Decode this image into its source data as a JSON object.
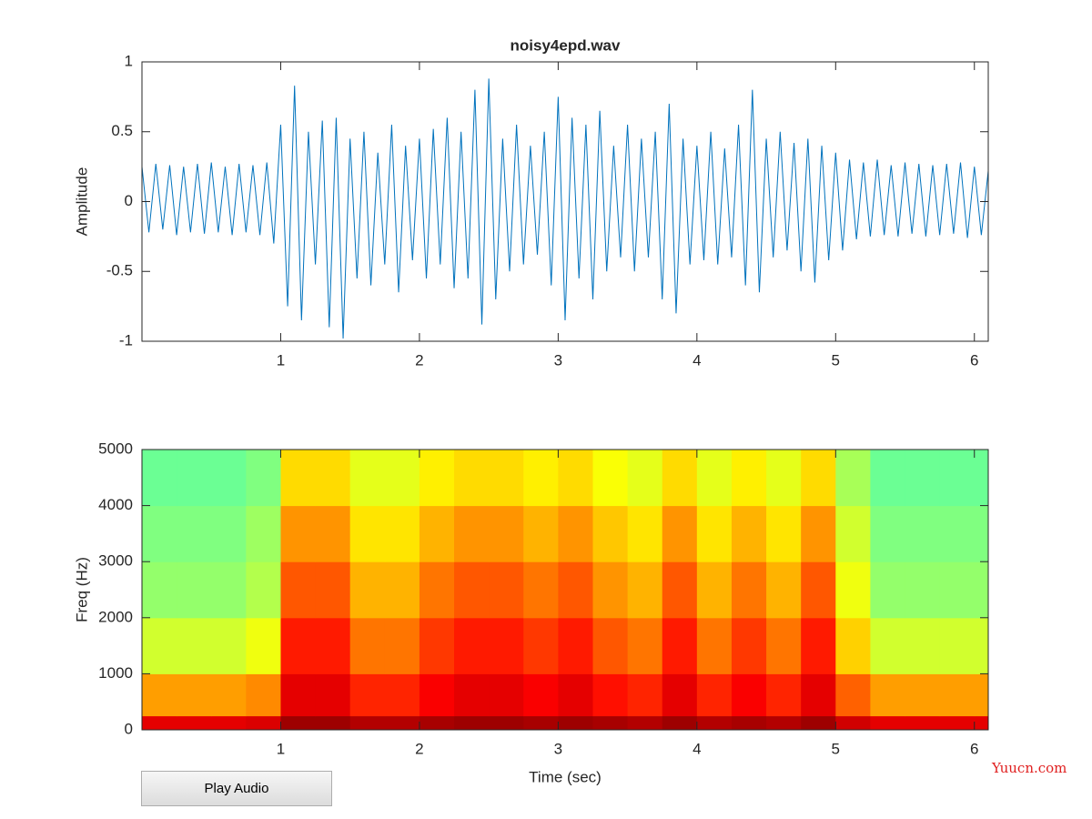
{
  "chart_data": [
    {
      "type": "line",
      "title": "noisy4epd.wav",
      "ylabel": "Amplitude",
      "x": [
        0,
        0.05,
        0.1,
        0.15,
        0.2,
        0.25,
        0.3,
        0.35,
        0.4,
        0.45,
        0.5,
        0.55,
        0.6,
        0.65,
        0.7,
        0.75,
        0.8,
        0.85,
        0.9,
        0.95,
        1,
        1.05,
        1.1,
        1.15,
        1.2,
        1.25,
        1.3,
        1.35,
        1.4,
        1.45,
        1.5,
        1.55,
        1.6,
        1.65,
        1.7,
        1.75,
        1.8,
        1.85,
        1.9,
        1.95,
        2,
        2.05,
        2.1,
        2.15,
        2.2,
        2.25,
        2.3,
        2.35,
        2.4,
        2.45,
        2.5,
        2.55,
        2.6,
        2.65,
        2.7,
        2.75,
        2.8,
        2.85,
        2.9,
        2.95,
        3,
        3.05,
        3.1,
        3.15,
        3.2,
        3.25,
        3.3,
        3.35,
        3.4,
        3.45,
        3.5,
        3.55,
        3.6,
        3.65,
        3.7,
        3.75,
        3.8,
        3.85,
        3.9,
        3.95,
        4,
        4.05,
        4.1,
        4.15,
        4.2,
        4.25,
        4.3,
        4.35,
        4.4,
        4.45,
        4.5,
        4.55,
        4.6,
        4.65,
        4.7,
        4.75,
        4.8,
        4.85,
        4.9,
        4.95,
        5,
        5.05,
        5.1,
        5.15,
        5.2,
        5.25,
        5.3,
        5.35,
        5.4,
        5.45,
        5.5,
        5.55,
        5.6,
        5.65,
        5.7,
        5.75,
        5.8,
        5.85,
        5.9,
        5.95,
        6,
        6.05,
        6.1
      ],
      "series": [
        {
          "color": "#0072bd",
          "values": [
            0.25,
            -0.22,
            0.27,
            -0.2,
            0.26,
            -0.24,
            0.25,
            -0.22,
            0.27,
            -0.23,
            0.28,
            -0.22,
            0.25,
            -0.24,
            0.27,
            -0.22,
            0.26,
            -0.24,
            0.28,
            -0.3,
            0.55,
            -0.75,
            0.83,
            -0.85,
            0.5,
            -0.45,
            0.58,
            -0.9,
            0.6,
            -0.98,
            0.45,
            -0.55,
            0.5,
            -0.6,
            0.35,
            -0.45,
            0.55,
            -0.65,
            0.4,
            -0.42,
            0.45,
            -0.55,
            0.52,
            -0.45,
            0.6,
            -0.62,
            0.5,
            -0.55,
            0.8,
            -0.88,
            0.88,
            -0.7,
            0.45,
            -0.5,
            0.55,
            -0.45,
            0.4,
            -0.38,
            0.5,
            -0.6,
            0.75,
            -0.85,
            0.6,
            -0.55,
            0.55,
            -0.7,
            0.65,
            -0.5,
            0.4,
            -0.4,
            0.55,
            -0.5,
            0.45,
            -0.4,
            0.5,
            -0.7,
            0.7,
            -0.8,
            0.45,
            -0.45,
            0.4,
            -0.42,
            0.5,
            -0.45,
            0.38,
            -0.4,
            0.55,
            -0.6,
            0.8,
            -0.65,
            0.45,
            -0.4,
            0.5,
            -0.35,
            0.42,
            -0.5,
            0.45,
            -0.58,
            0.4,
            -0.42,
            0.35,
            -0.35,
            0.3,
            -0.27,
            0.28,
            -0.25,
            0.3,
            -0.24,
            0.26,
            -0.25,
            0.28,
            -0.23,
            0.27,
            -0.25,
            0.26,
            -0.24,
            0.27,
            -0.23,
            0.28,
            -0.26,
            0.25,
            -0.24,
            0.22
          ]
        }
      ],
      "xlim": [
        0,
        6.1
      ],
      "ylim": [
        -1,
        1
      ],
      "xticks": [
        1,
        2,
        3,
        4,
        5,
        6
      ],
      "yticks": [
        -1,
        -0.5,
        0,
        0.5,
        1
      ]
    },
    {
      "type": "heatmap",
      "xlabel": "Time (sec)",
      "ylabel": "Freq (Hz)",
      "colormap": "jet",
      "clim": [
        0,
        1
      ],
      "x_bins": [
        0,
        0.25,
        0.5,
        0.75,
        1,
        1.25,
        1.5,
        1.75,
        2,
        2.25,
        2.5,
        2.75,
        3,
        3.25,
        3.5,
        3.75,
        4,
        4.25,
        4.5,
        4.75,
        5,
        5.25,
        5.5,
        5.75,
        6,
        6.1
      ],
      "y_bins": [
        0,
        250,
        1000,
        2000,
        3000,
        4000,
        5000
      ],
      "values": [
        [
          0.9,
          0.9,
          0.9,
          0.91,
          0.97,
          0.97,
          0.95,
          0.95,
          0.96,
          0.97,
          0.97,
          0.96,
          0.97,
          0.96,
          0.95,
          0.97,
          0.95,
          0.96,
          0.95,
          0.97,
          0.92,
          0.9,
          0.9,
          0.9,
          0.9
        ],
        [
          0.72,
          0.72,
          0.72,
          0.74,
          0.9,
          0.9,
          0.84,
          0.84,
          0.88,
          0.9,
          0.9,
          0.88,
          0.9,
          0.86,
          0.84,
          0.9,
          0.84,
          0.88,
          0.84,
          0.9,
          0.78,
          0.72,
          0.72,
          0.72,
          0.72
        ],
        [
          0.58,
          0.58,
          0.58,
          0.61,
          0.85,
          0.85,
          0.76,
          0.76,
          0.82,
          0.85,
          0.85,
          0.82,
          0.85,
          0.79,
          0.76,
          0.85,
          0.76,
          0.82,
          0.76,
          0.85,
          0.67,
          0.58,
          0.58,
          0.58,
          0.58
        ],
        [
          0.52,
          0.52,
          0.52,
          0.55,
          0.79,
          0.79,
          0.7,
          0.7,
          0.76,
          0.79,
          0.79,
          0.76,
          0.79,
          0.73,
          0.7,
          0.79,
          0.7,
          0.76,
          0.7,
          0.79,
          0.61,
          0.52,
          0.52,
          0.52,
          0.52
        ],
        [
          0.5,
          0.5,
          0.5,
          0.53,
          0.73,
          0.73,
          0.65,
          0.65,
          0.7,
          0.73,
          0.73,
          0.7,
          0.73,
          0.68,
          0.65,
          0.73,
          0.65,
          0.7,
          0.65,
          0.73,
          0.58,
          0.5,
          0.5,
          0.5,
          0.5
        ],
        [
          0.48,
          0.48,
          0.48,
          0.5,
          0.66,
          0.66,
          0.6,
          0.6,
          0.64,
          0.66,
          0.66,
          0.64,
          0.66,
          0.62,
          0.6,
          0.66,
          0.6,
          0.64,
          0.6,
          0.66,
          0.54,
          0.48,
          0.48,
          0.48,
          0.48
        ]
      ],
      "xlim": [
        0,
        6.1
      ],
      "ylim": [
        0,
        5000
      ],
      "xticks": [
        1,
        2,
        3,
        4,
        5,
        6
      ],
      "yticks": [
        0,
        1000,
        2000,
        3000,
        4000,
        5000
      ]
    }
  ],
  "button": {
    "label": "Play Audio"
  },
  "watermark": "Yuucn.com"
}
